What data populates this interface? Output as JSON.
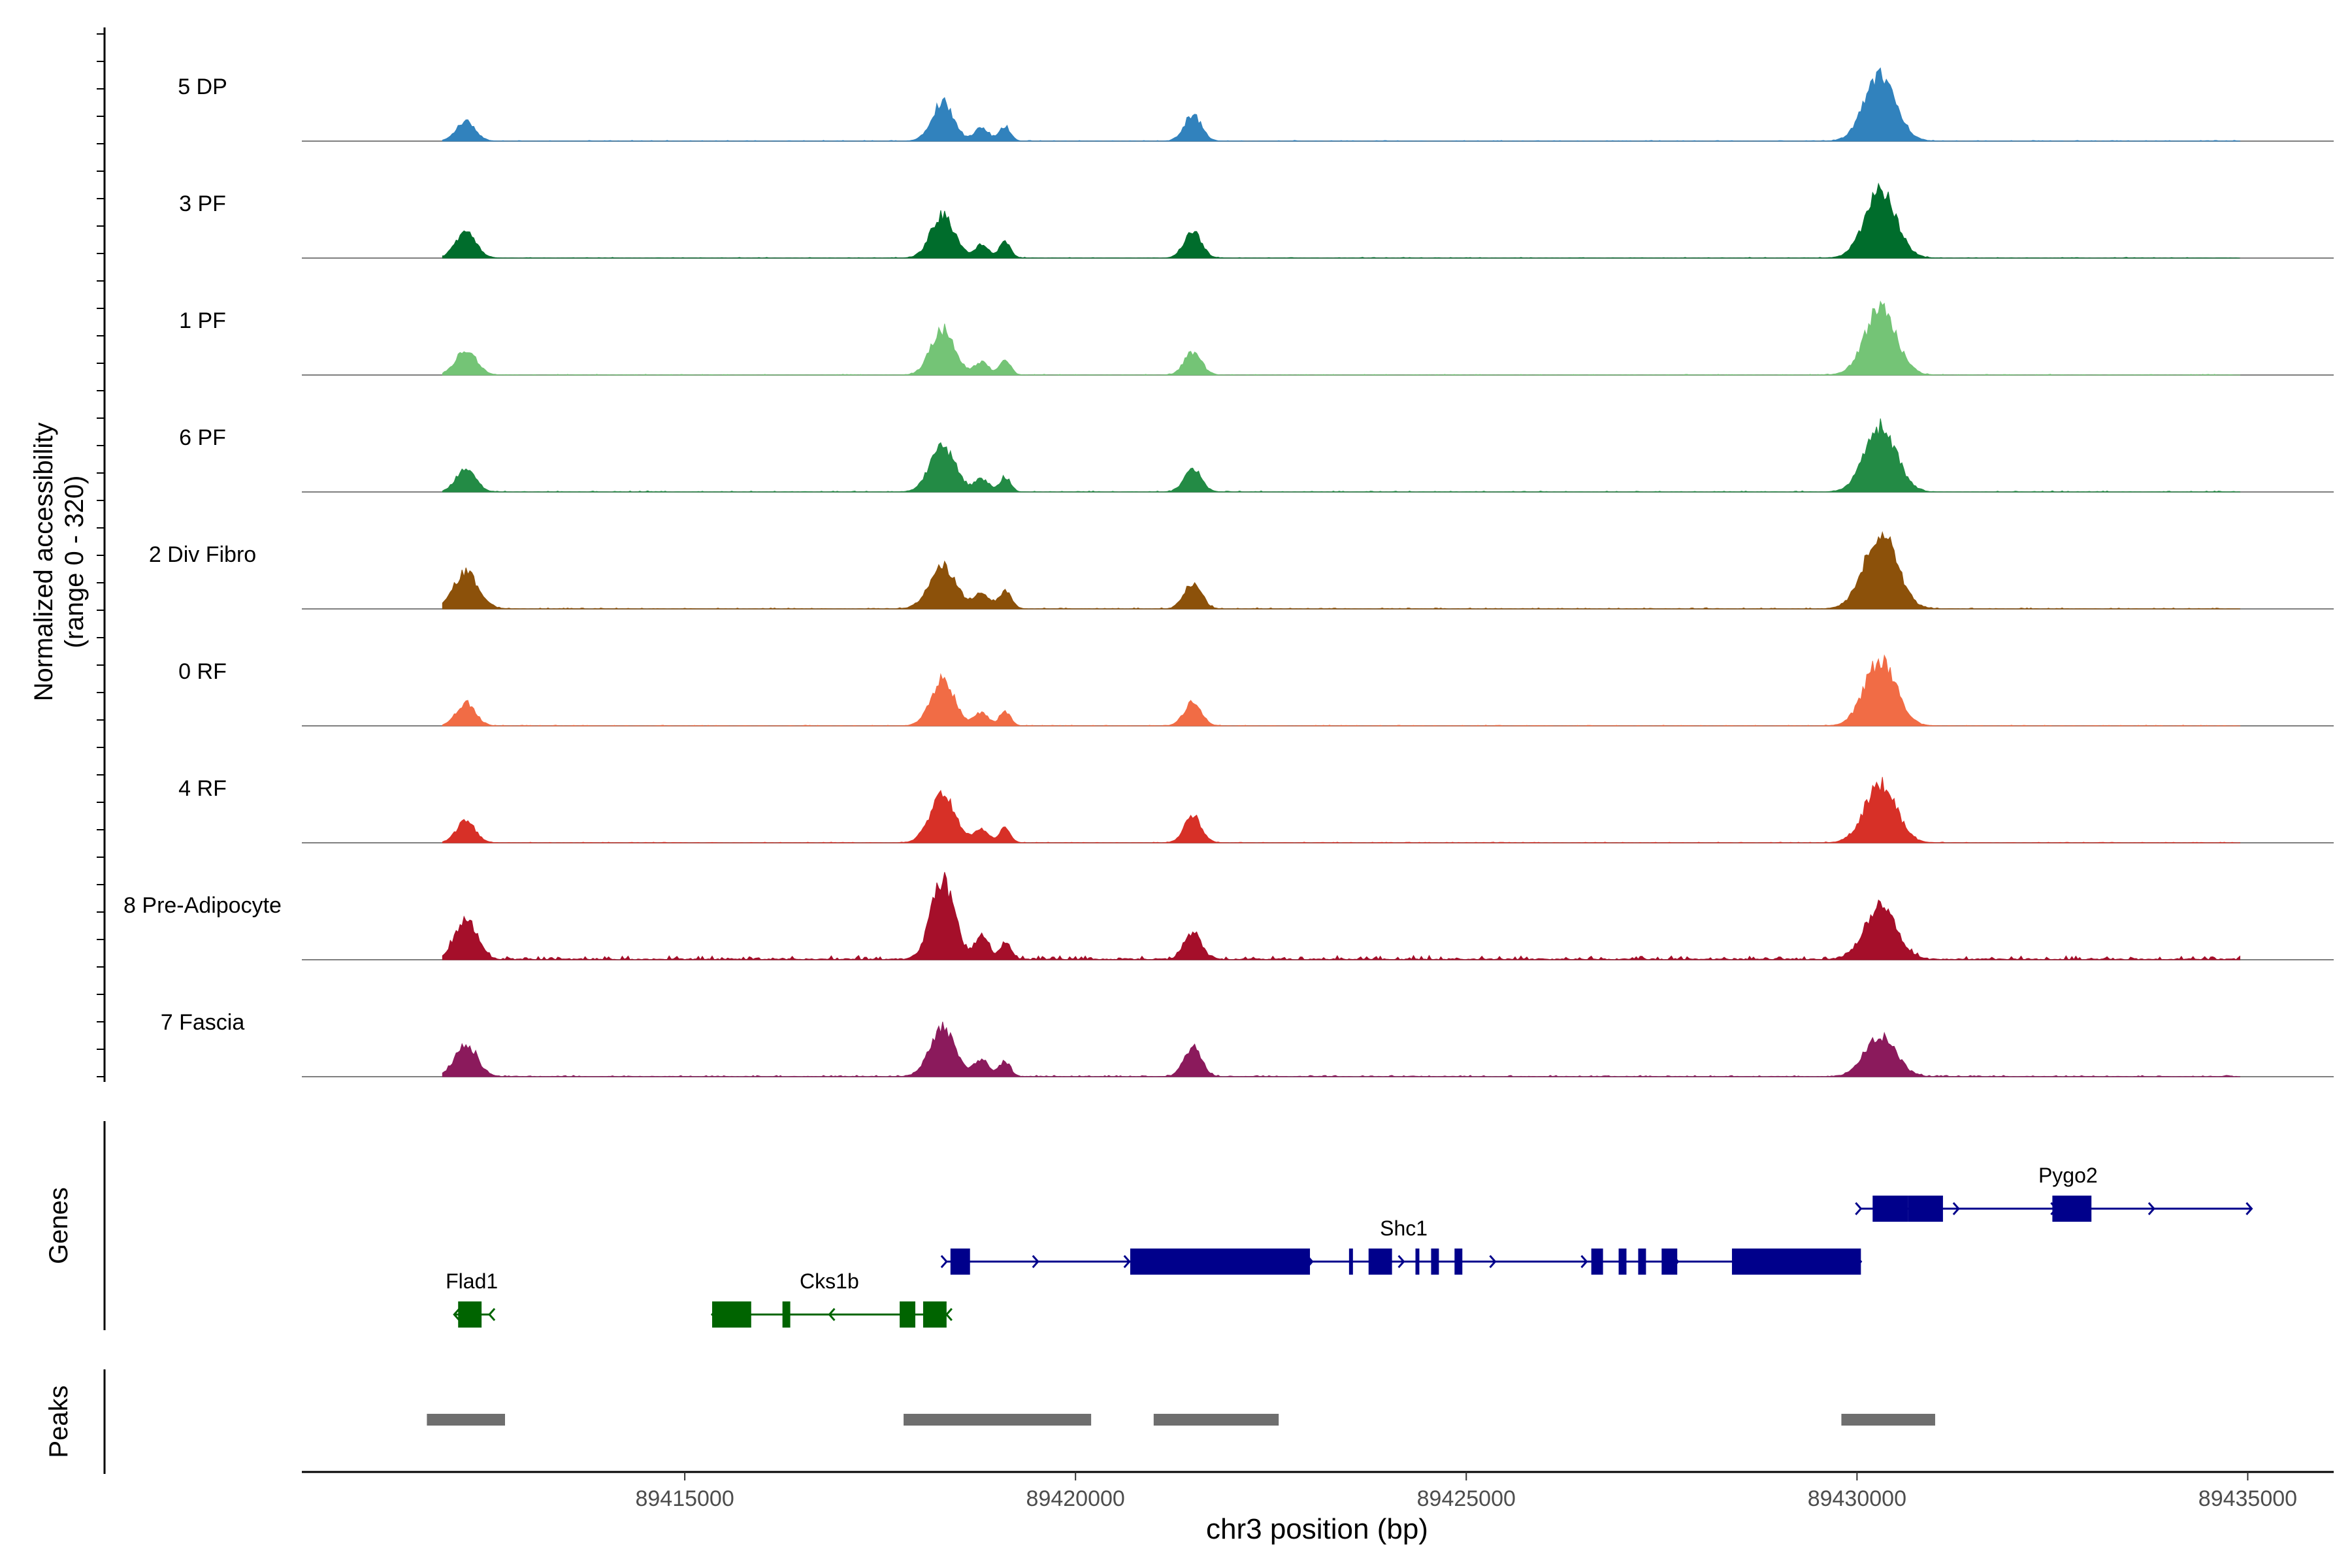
{
  "chart_data": {
    "type": "area",
    "title": "",
    "xlabel": "chr3 position (bp)",
    "ylabel_line1": "Normalized accessibility",
    "ylabel_line2": "(range 0 - 320)",
    "ylim": [
      0,
      320
    ],
    "xlim": [
      89410100,
      89436100
    ],
    "x_ticks": [
      89415000,
      89420000,
      89425000,
      89430000,
      89435000
    ],
    "x_tick_labels": [
      "89415000",
      "89420000",
      "89425000",
      "89430000",
      "89435000"
    ],
    "region_start": 89411900,
    "region_end": 89434900,
    "series": [
      {
        "name": "5 DP",
        "color": "#3182BD",
        "noise": 2,
        "peaks": [
          [
            89412200,
            60,
            120
          ],
          [
            89418300,
            120,
            140
          ],
          [
            89418800,
            40,
            90
          ],
          [
            89419100,
            45,
            70
          ],
          [
            89421500,
            80,
            110
          ],
          [
            89430300,
            200,
            200
          ]
        ]
      },
      {
        "name": "3 PF",
        "color": "#006D2C",
        "noise": 2,
        "peaks": [
          [
            89412200,
            80,
            130
          ],
          [
            89418300,
            130,
            150
          ],
          [
            89418800,
            40,
            90
          ],
          [
            89419100,
            50,
            70
          ],
          [
            89421500,
            80,
            110
          ],
          [
            89430300,
            200,
            200
          ]
        ]
      },
      {
        "name": "1 PF",
        "color": "#74C476",
        "noise": 2,
        "peaks": [
          [
            89412200,
            80,
            130
          ],
          [
            89418300,
            140,
            150
          ],
          [
            89418800,
            40,
            90
          ],
          [
            89419100,
            45,
            70
          ],
          [
            89421500,
            70,
            110
          ],
          [
            89430300,
            200,
            200
          ]
        ]
      },
      {
        "name": "6 PF",
        "color": "#238B45",
        "noise": 3,
        "peaks": [
          [
            89412200,
            75,
            120
          ],
          [
            89418300,
            140,
            160
          ],
          [
            89418800,
            40,
            90
          ],
          [
            89419100,
            45,
            70
          ],
          [
            89421500,
            70,
            110
          ],
          [
            89430300,
            200,
            200
          ]
        ]
      },
      {
        "name": "2 Div Fibro",
        "color": "#8C510A",
        "noise": 3,
        "peaks": [
          [
            89412200,
            110,
            160
          ],
          [
            89418300,
            130,
            170
          ],
          [
            89418800,
            50,
            100
          ],
          [
            89419100,
            55,
            80
          ],
          [
            89421500,
            80,
            110
          ],
          [
            89430300,
            230,
            210
          ]
        ]
      },
      {
        "name": "0 RF",
        "color": "#F16C45",
        "noise": 2,
        "peaks": [
          [
            89412200,
            70,
            120
          ],
          [
            89418300,
            140,
            150
          ],
          [
            89418800,
            40,
            90
          ],
          [
            89419100,
            45,
            70
          ],
          [
            89421500,
            70,
            110
          ],
          [
            89430300,
            200,
            200
          ]
        ]
      },
      {
        "name": "4 RF",
        "color": "#D73027",
        "noise": 2,
        "peaks": [
          [
            89412200,
            65,
            120
          ],
          [
            89418300,
            150,
            160
          ],
          [
            89418800,
            40,
            90
          ],
          [
            89419100,
            45,
            70
          ],
          [
            89421500,
            80,
            110
          ],
          [
            89430300,
            180,
            200
          ]
        ]
      },
      {
        "name": "8 Pre-Adipocyte",
        "color": "#A50F2A",
        "noise": 12,
        "peaks": [
          [
            89412200,
            120,
            140
          ],
          [
            89418300,
            240,
            150
          ],
          [
            89418800,
            70,
            90
          ],
          [
            89419100,
            50,
            70
          ],
          [
            89421500,
            80,
            110
          ],
          [
            89430300,
            160,
            200
          ]
        ]
      },
      {
        "name": "7 Fascia",
        "color": "#8B1A5C",
        "noise": 4,
        "peaks": [
          [
            89412200,
            100,
            140
          ],
          [
            89418300,
            150,
            160
          ],
          [
            89418800,
            50,
            100
          ],
          [
            89419100,
            45,
            70
          ],
          [
            89421500,
            90,
            110
          ],
          [
            89430300,
            120,
            200
          ]
        ]
      }
    ],
    "genes": [
      {
        "name": "Flad1",
        "color": "#006400",
        "strand": "-",
        "row": 2,
        "start": 89412050,
        "end": 89412500,
        "exons": [
          [
            89412100,
            89412400
          ]
        ]
      },
      {
        "name": "Cks1b",
        "color": "#006400",
        "strand": "-",
        "row": 2,
        "start": 89415350,
        "end": 89418350,
        "exons": [
          [
            89415350,
            89415850
          ],
          [
            89416250,
            89416350
          ],
          [
            89417750,
            89417950
          ],
          [
            89418050,
            89418350
          ]
        ]
      },
      {
        "name": "Shc1",
        "color": "#00008B",
        "strand": "+",
        "row": 1,
        "start": 89418350,
        "end": 89430050,
        "exons": [
          [
            89418400,
            89418650
          ],
          [
            89420700,
            89423000
          ],
          [
            89423500,
            89423550
          ],
          [
            89423750,
            89424050
          ],
          [
            89424350,
            89424400
          ],
          [
            89424550,
            89424650
          ],
          [
            89424850,
            89424950
          ],
          [
            89426600,
            89426750
          ],
          [
            89426950,
            89427050
          ],
          [
            89427200,
            89427300
          ],
          [
            89427500,
            89427700
          ],
          [
            89428400,
            89430050
          ]
        ]
      },
      {
        "name": "Pygo2",
        "color": "#00008B",
        "strand": "+",
        "row": 0,
        "start": 89430050,
        "end": 89435050,
        "exons": [
          [
            89430200,
            89430650
          ],
          [
            89430650,
            89431100
          ],
          [
            89432500,
            89433000
          ]
        ]
      }
    ],
    "peaks_track": [
      [
        89411700,
        89412700
      ],
      [
        89417800,
        89420200
      ],
      [
        89421000,
        89422600
      ],
      [
        89429800,
        89431000
      ]
    ],
    "panel_labels": {
      "genes": "Genes",
      "peaks": "Peaks"
    }
  }
}
